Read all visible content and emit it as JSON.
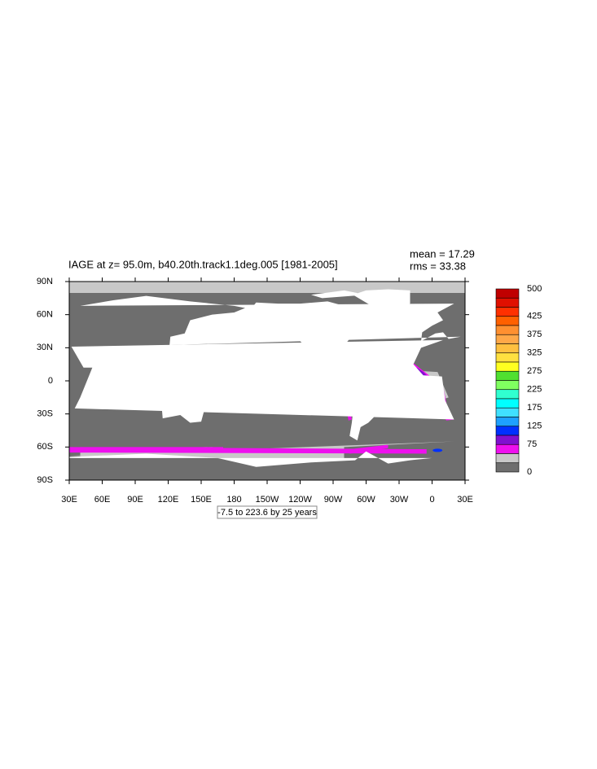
{
  "title": "IAGE at z=  95.0m, b40.20th.track1.1deg.005 [1981-2005]",
  "stats": [
    "mean = 17.29",
    "rms = 33.38"
  ],
  "lat_ticks": [
    "90N",
    "60N",
    "30N",
    "0",
    "30S",
    "60S",
    "90S"
  ],
  "lon_ticks": [
    "30E",
    "60E",
    "90E",
    "120E",
    "150E",
    "180",
    "150W",
    "120W",
    "90W",
    "60W",
    "30W",
    "0",
    "30E"
  ],
  "colorbar": {
    "colors": [
      "#c00000",
      "#e01000",
      "#ff3000",
      "#ff6000",
      "#ff9030",
      "#ffa848",
      "#ffc040",
      "#ffe040",
      "#ffff20",
      "#50e030",
      "#80ff60",
      "#30ffd0",
      "#00ffff",
      "#40e0ff",
      "#1ea0ff",
      "#0030ff",
      "#8010d0",
      "#ee10ee",
      "#c8c8c8",
      "#6e6e6e"
    ],
    "labels": [
      "500",
      "425",
      "375",
      "325",
      "275",
      "225",
      "175",
      "125",
      "75",
      "0"
    ]
  },
  "note": "-7.5 to 223.6 by 25 years"
}
